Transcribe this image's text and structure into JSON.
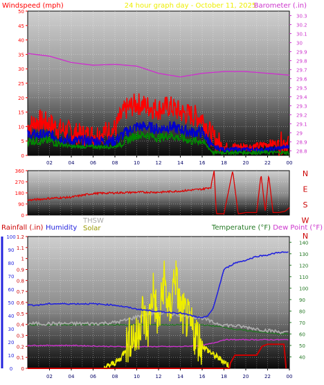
{
  "header": {
    "wind_title": "Windspeed (mph)",
    "graph_title": "24 hour graph day - October 11, 2025",
    "baro_title": "Barometer (.in)"
  },
  "colors": {
    "wind": "#ff0000",
    "wind_avg": "#0000cc",
    "wind_low": "#008800",
    "barometer": "#cc33cc",
    "direction": "#dd0000",
    "rain": "#cc0000",
    "humidity": "#2222dd",
    "solar": "#eeee00",
    "thsw": "#aaaaaa",
    "temperature": "#227722",
    "dewpoint": "#cc33cc"
  },
  "chart_data": [
    {
      "type": "line",
      "name": "wind-barometer",
      "x_ticks": [
        "02",
        "04",
        "06",
        "08",
        "10",
        "12",
        "14",
        "16",
        "18",
        "20",
        "22",
        "00"
      ],
      "left_axis": {
        "label": "Windspeed (mph)",
        "ticks": [
          "0",
          "5",
          "10",
          "15",
          "20",
          "25",
          "30",
          "35",
          "40",
          "45",
          "50"
        ],
        "range": [
          0,
          50
        ]
      },
      "right_axis": {
        "label": "Barometer (.in)",
        "ticks": [
          "28.8",
          "28.9",
          "29",
          "29.1",
          "29.2",
          "29.3",
          "29.4",
          "29.5",
          "29.6",
          "29.7",
          "29.8",
          "29.9",
          "30",
          "30.1",
          "30.2",
          "30.3"
        ],
        "range": [
          28.75,
          30.35
        ]
      },
      "series": [
        {
          "key": "gust",
          "axis": "left",
          "points": [
            [
              0,
              10
            ],
            [
              1,
              12
            ],
            [
              2,
              11
            ],
            [
              3,
              9
            ],
            [
              4,
              8
            ],
            [
              5,
              7
            ],
            [
              6,
              7
            ],
            [
              7,
              8
            ],
            [
              8,
              9
            ],
            [
              8.5,
              13
            ],
            [
              9,
              16
            ],
            [
              10,
              18
            ],
            [
              11,
              17
            ],
            [
              12,
              16
            ],
            [
              13,
              17
            ],
            [
              14,
              15
            ],
            [
              15,
              14
            ],
            [
              16,
              13
            ],
            [
              17,
              6
            ],
            [
              18,
              3
            ],
            [
              19,
              3
            ],
            [
              20,
              3
            ],
            [
              21,
              3
            ],
            [
              22,
              4
            ],
            [
              23,
              4
            ],
            [
              24,
              5
            ]
          ]
        },
        {
          "key": "avg",
          "axis": "left",
          "points": [
            [
              0,
              7
            ],
            [
              2,
              7
            ],
            [
              4,
              5
            ],
            [
              6,
              5
            ],
            [
              8,
              5
            ],
            [
              9,
              8
            ],
            [
              10,
              10
            ],
            [
              11,
              10
            ],
            [
              12,
              9
            ],
            [
              13,
              10
            ],
            [
              14,
              9
            ],
            [
              15,
              8
            ],
            [
              16,
              8
            ],
            [
              17,
              3
            ],
            [
              18,
              2
            ],
            [
              20,
              2
            ],
            [
              22,
              2
            ],
            [
              24,
              3
            ]
          ]
        },
        {
          "key": "low",
          "axis": "left",
          "points": [
            [
              0,
              5
            ],
            [
              2,
              5
            ],
            [
              4,
              3
            ],
            [
              6,
              3
            ],
            [
              8,
              3
            ],
            [
              9,
              5
            ],
            [
              10,
              7
            ],
            [
              11,
              7
            ],
            [
              12,
              6
            ],
            [
              13,
              7
            ],
            [
              14,
              6
            ],
            [
              15,
              5
            ],
            [
              16,
              5
            ],
            [
              17,
              1
            ],
            [
              18,
              1
            ],
            [
              20,
              1
            ],
            [
              22,
              1
            ],
            [
              24,
              1
            ]
          ]
        },
        {
          "key": "baro",
          "axis": "right",
          "points": [
            [
              0,
              29.88
            ],
            [
              2,
              29.85
            ],
            [
              4,
              29.78
            ],
            [
              6,
              29.75
            ],
            [
              8,
              29.76
            ],
            [
              10,
              29.74
            ],
            [
              12,
              29.66
            ],
            [
              14,
              29.62
            ],
            [
              16,
              29.66
            ],
            [
              18,
              29.68
            ],
            [
              20,
              29.68
            ],
            [
              22,
              29.66
            ],
            [
              24,
              29.64
            ]
          ]
        }
      ]
    },
    {
      "type": "scatter",
      "name": "wind-direction",
      "left_axis": {
        "ticks": [
          "0",
          "90",
          "180",
          "270",
          "360"
        ],
        "range": [
          0,
          360
        ]
      },
      "right_axis": {
        "ticks": [
          "N",
          "W",
          "S",
          "E",
          "N"
        ]
      },
      "series": [
        {
          "key": "direction",
          "points": [
            [
              0,
              120
            ],
            [
              2,
              135
            ],
            [
              4,
              145
            ],
            [
              5,
              160
            ],
            [
              6,
              175
            ],
            [
              8,
              180
            ],
            [
              10,
              185
            ],
            [
              12,
              185
            ],
            [
              14,
              195
            ],
            [
              16,
              210
            ],
            [
              16.8,
              225
            ],
            [
              17.1,
              360
            ],
            [
              17.3,
              10
            ],
            [
              18,
              10
            ],
            [
              18.8,
              360
            ],
            [
              19.3,
              10
            ],
            [
              20,
              20
            ],
            [
              21,
              20
            ],
            [
              21.4,
              330
            ],
            [
              21.8,
              20
            ],
            [
              22.1,
              330
            ],
            [
              22.5,
              20
            ],
            [
              23,
              20
            ],
            [
              23.6,
              30
            ],
            [
              24,
              60
            ]
          ]
        }
      ]
    },
    {
      "type": "line",
      "name": "rain-humidity-temperature",
      "titles": {
        "rain": "Rainfall (.in)",
        "humidity": "Humidity",
        "thsw": "THSW",
        "solar": "Solar",
        "temperature": "Temperature (°F)",
        "dewpoint": "Dew Point (°F)"
      },
      "left_axis_humidity": {
        "ticks": [
          "0",
          "10",
          "20",
          "30",
          "40",
          "50",
          "60",
          "70",
          "80",
          "90",
          "100"
        ],
        "range": [
          0,
          100
        ]
      },
      "left_axis_rain": {
        "ticks": [
          "0",
          "0.1",
          "0.2",
          "0.3",
          "0.4",
          "0.5",
          "0.6",
          "0.7",
          "0.8",
          "0.9",
          "1",
          "1.1",
          "1.2"
        ],
        "range": [
          0,
          1.2
        ]
      },
      "right_axis": {
        "ticks": [
          "40",
          "50",
          "60",
          "70",
          "80",
          "90",
          "100",
          "110",
          "120",
          "130",
          "140"
        ],
        "range": [
          30,
          145
        ]
      },
      "series": [
        {
          "key": "humidity",
          "axis": "humidity",
          "points": [
            [
              0,
              48
            ],
            [
              1,
              48
            ],
            [
              2,
              49
            ],
            [
              4,
              49
            ],
            [
              6,
              49
            ],
            [
              8,
              48
            ],
            [
              10,
              45
            ],
            [
              12,
              43
            ],
            [
              14,
              42
            ],
            [
              15,
              40
            ],
            [
              16,
              38
            ],
            [
              16.5,
              40
            ],
            [
              17,
              45
            ],
            [
              17.5,
              60
            ],
            [
              18,
              75
            ],
            [
              19,
              80
            ],
            [
              20,
              82
            ],
            [
              21,
              85
            ],
            [
              22,
              86
            ],
            [
              23,
              88
            ],
            [
              24,
              88
            ]
          ]
        },
        {
          "key": "rain",
          "axis": "rain",
          "points": [
            [
              0,
              0
            ],
            [
              18.5,
              0
            ],
            [
              18.6,
              0.05
            ],
            [
              19,
              0.12
            ],
            [
              21,
              0.12
            ],
            [
              21.5,
              0.2
            ],
            [
              22,
              0.22
            ],
            [
              23.5,
              0.22
            ],
            [
              23.7,
              0.0
            ]
          ]
        },
        {
          "key": "temperature",
          "axis": "temp",
          "points": [
            [
              0,
              68
            ],
            [
              2,
              68
            ],
            [
              4,
              68
            ],
            [
              6,
              68
            ],
            [
              8,
              68
            ],
            [
              10,
              68
            ],
            [
              12,
              68
            ],
            [
              14,
              68
            ],
            [
              16,
              68
            ],
            [
              17,
              67
            ],
            [
              18,
              66
            ],
            [
              19,
              64
            ],
            [
              20,
              63
            ],
            [
              21,
              62
            ],
            [
              22,
              61
            ],
            [
              23,
              60
            ],
            [
              24,
              60
            ]
          ]
        },
        {
          "key": "dewpoint",
          "axis": "temp",
          "points": [
            [
              0,
              50
            ],
            [
              4,
              50
            ],
            [
              8,
              49
            ],
            [
              10,
              49
            ],
            [
              12,
              49
            ],
            [
              14,
              49
            ],
            [
              16,
              50
            ],
            [
              17,
              52
            ],
            [
              18,
              55
            ],
            [
              20,
              55
            ],
            [
              22,
              55
            ],
            [
              24,
              55
            ]
          ]
        },
        {
          "key": "thsw",
          "axis": "temp",
          "points": [
            [
              0,
              69
            ],
            [
              2,
              69
            ],
            [
              4,
              69
            ],
            [
              6,
              69
            ],
            [
              8,
              70
            ],
            [
              9,
              72
            ],
            [
              10,
              75
            ],
            [
              11,
              78
            ],
            [
              12,
              78
            ],
            [
              13,
              78
            ],
            [
              14,
              76
            ],
            [
              15,
              75
            ],
            [
              16,
              74
            ],
            [
              17,
              70
            ],
            [
              18,
              68
            ],
            [
              20,
              66
            ],
            [
              22,
              63
            ],
            [
              24,
              61
            ]
          ]
        },
        {
          "key": "solar",
          "axis": "temp",
          "points": [
            [
              7,
              30
            ],
            [
              8,
              35
            ],
            [
              8.5,
              38
            ],
            [
              9,
              48
            ],
            [
              9.5,
              60
            ],
            [
              10,
              55
            ],
            [
              10.5,
              80
            ],
            [
              11,
              62
            ],
            [
              11.5,
              100
            ],
            [
              12,
              65
            ],
            [
              12.5,
              110
            ],
            [
              13,
              75
            ],
            [
              13.5,
              115
            ],
            [
              14,
              80
            ],
            [
              14.5,
              75
            ],
            [
              15,
              65
            ],
            [
              15.5,
              58
            ],
            [
              16,
              50
            ],
            [
              17,
              42
            ],
            [
              18,
              36
            ],
            [
              18.5,
              32
            ]
          ]
        }
      ]
    }
  ]
}
